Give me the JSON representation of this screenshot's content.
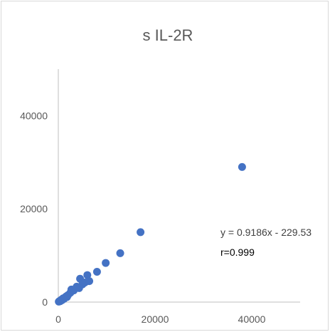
{
  "chart_data": {
    "type": "scatter",
    "title": "s IL-2R",
    "xlabel": "",
    "ylabel": "",
    "xlim": [
      0,
      50000
    ],
    "ylim": [
      0,
      50000
    ],
    "x_ticks": [
      0,
      20000,
      40000
    ],
    "y_ticks": [
      0,
      20000,
      40000
    ],
    "grid": false,
    "legend": "none",
    "marker_color": "#4472c4",
    "series": [
      {
        "points": [
          {
            "x": 100,
            "y": 100
          },
          {
            "x": 200,
            "y": 150
          },
          {
            "x": 300,
            "y": 250
          },
          {
            "x": 400,
            "y": 200
          },
          {
            "x": 500,
            "y": 400
          },
          {
            "x": 600,
            "y": 350
          },
          {
            "x": 700,
            "y": 550
          },
          {
            "x": 800,
            "y": 450
          },
          {
            "x": 900,
            "y": 650
          },
          {
            "x": 1000,
            "y": 800
          },
          {
            "x": 1200,
            "y": 700
          },
          {
            "x": 1400,
            "y": 1000
          },
          {
            "x": 1600,
            "y": 1200
          },
          {
            "x": 1800,
            "y": 1100
          },
          {
            "x": 2000,
            "y": 1500
          },
          {
            "x": 2500,
            "y": 2000
          },
          {
            "x": 2700,
            "y": 2700
          },
          {
            "x": 3200,
            "y": 2500
          },
          {
            "x": 3800,
            "y": 3300
          },
          {
            "x": 4300,
            "y": 3000
          },
          {
            "x": 4500,
            "y": 5000
          },
          {
            "x": 5000,
            "y": 3800
          },
          {
            "x": 5500,
            "y": 4200
          },
          {
            "x": 6000,
            "y": 5800
          },
          {
            "x": 6400,
            "y": 4500
          },
          {
            "x": 8000,
            "y": 6500
          },
          {
            "x": 9800,
            "y": 8400
          },
          {
            "x": 12800,
            "y": 10500
          },
          {
            "x": 17000,
            "y": 15000
          },
          {
            "x": 38000,
            "y": 29000
          }
        ]
      }
    ],
    "annotations": [
      {
        "id": "equation",
        "text": "y = 0.9186x - 229.53"
      },
      {
        "id": "r",
        "text": "r=0.999"
      }
    ]
  }
}
